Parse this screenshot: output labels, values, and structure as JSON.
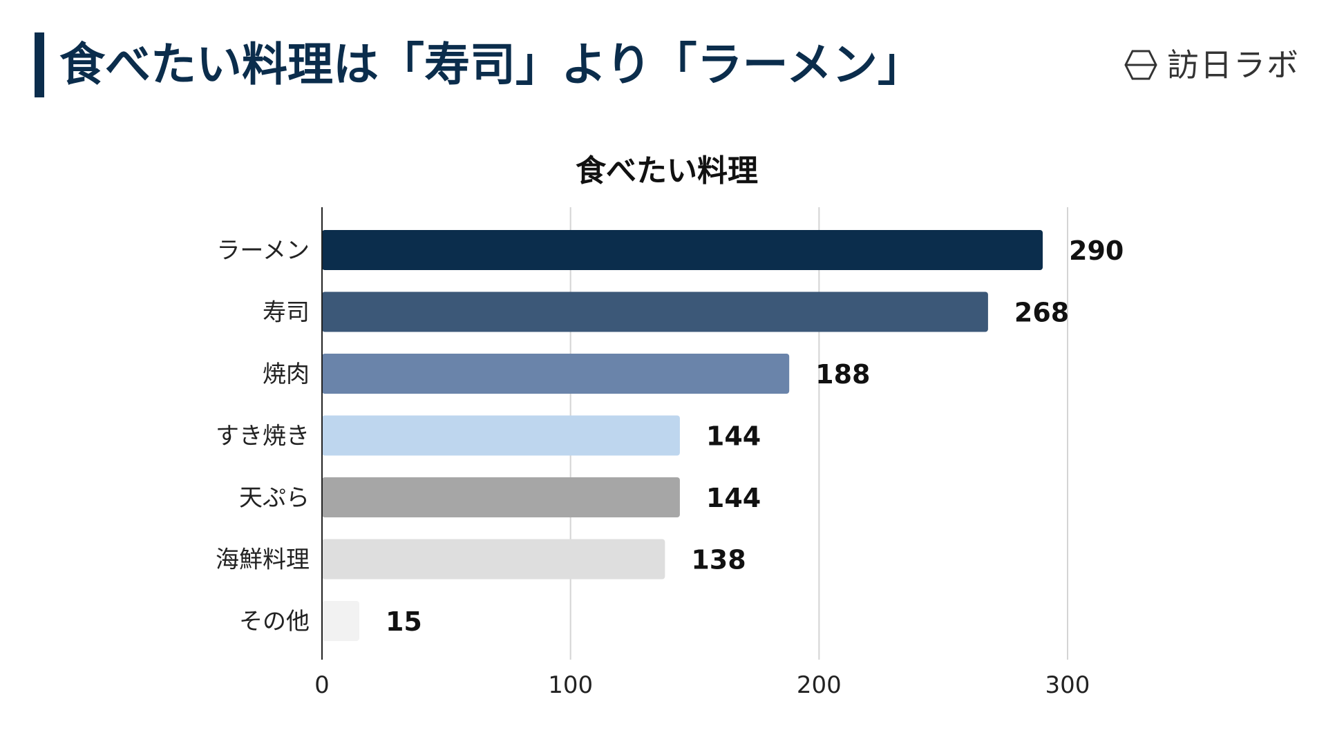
{
  "header": {
    "title": "食べたい料理は「寿司」より「ラーメン」",
    "brand": "訪日ラボ",
    "accent_color": "#0b2d4c"
  },
  "chart_data": {
    "type": "bar",
    "orientation": "horizontal",
    "title": "食べたい料理",
    "categories": [
      "ラーメン",
      "寿司",
      "焼肉",
      "すき焼き",
      "天ぷら",
      "海鮮料理",
      "その他"
    ],
    "values": [
      290,
      268,
      188,
      144,
      144,
      138,
      15
    ],
    "colors": [
      "#0b2d4c",
      "#3c5878",
      "#6a84aa",
      "#bed6ee",
      "#a6a6a6",
      "#dedede",
      "#f2f2f2"
    ],
    "xlim": [
      0,
      300
    ],
    "xticks": [
      0,
      100,
      200,
      300
    ],
    "grid": true,
    "xlabel": "",
    "ylabel": ""
  }
}
